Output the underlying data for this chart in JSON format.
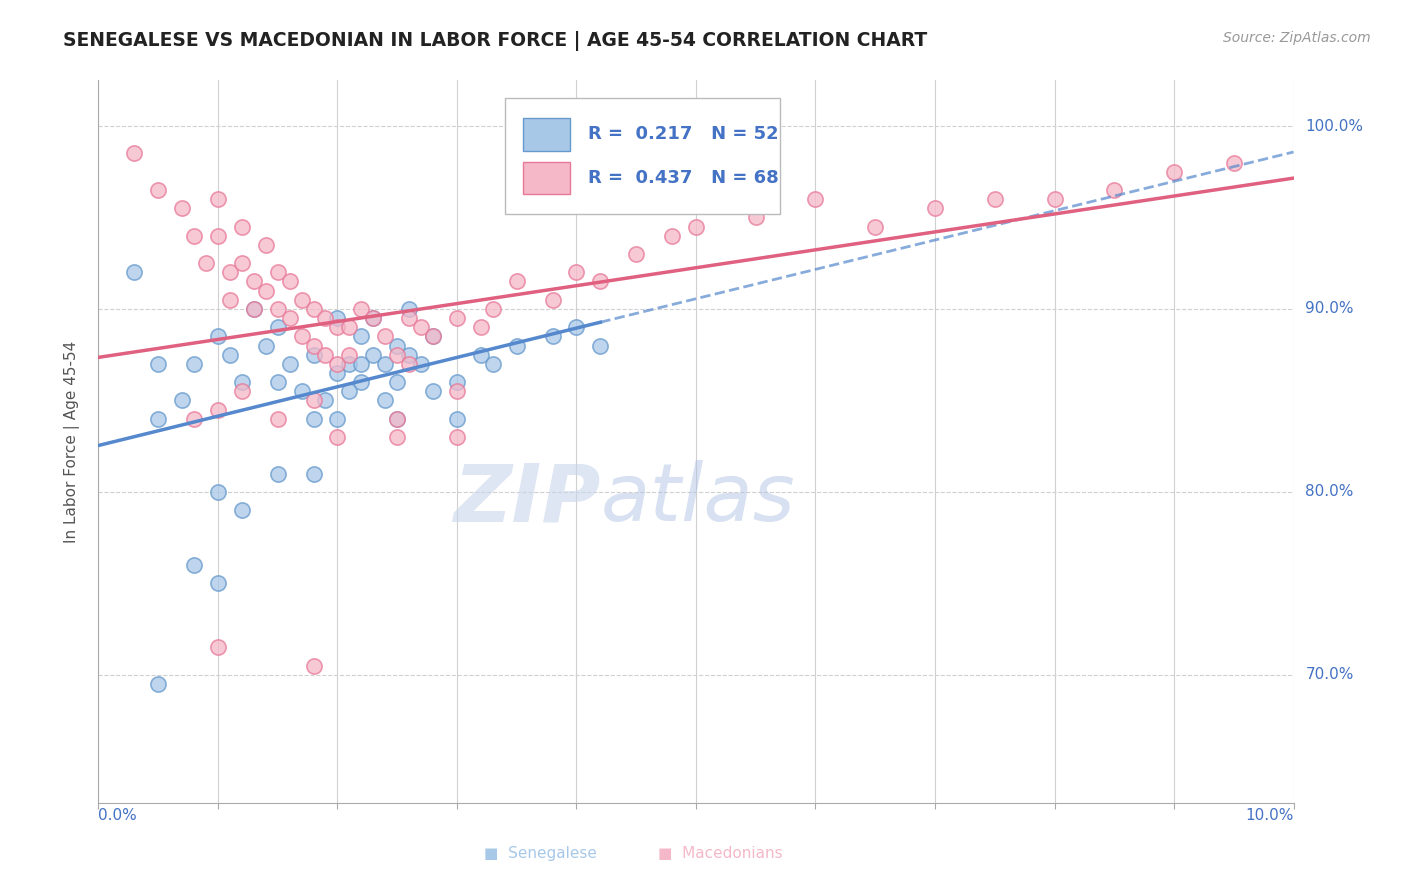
{
  "title": "SENEGALESE VS MACEDONIAN IN LABOR FORCE | AGE 45-54 CORRELATION CHART",
  "source_text": "Source: ZipAtlas.com",
  "ylabel": "In Labor Force | Age 45-54",
  "xmin": 0.0,
  "xmax": 0.1,
  "ymin": 0.63,
  "ymax": 1.025,
  "yticks": [
    0.7,
    0.8,
    0.9,
    1.0
  ],
  "ytick_labels": [
    "70.0%",
    "80.0%",
    "90.0%",
    "100.0%"
  ],
  "senegalese_color": "#a8c8e8",
  "macedonian_color": "#f4b8c8",
  "senegalese_edge": "#6699cc",
  "macedonian_edge": "#e87898",
  "trend_senegalese_color": "#5588cc",
  "trend_macedonian_color": "#e06080",
  "R_senegalese": 0.217,
  "N_senegalese": 52,
  "R_macedonian": 0.437,
  "N_macedonian": 68,
  "legend_color": "#4472c4",
  "watermark_ZIP_color": "#c8d8f0",
  "watermark_atlas_color": "#b0c4e4",
  "senegalese_points": [
    [
      0.005,
      0.87
    ],
    [
      0.005,
      0.84
    ],
    [
      0.007,
      0.85
    ],
    [
      0.008,
      0.87
    ],
    [
      0.01,
      0.885
    ],
    [
      0.011,
      0.875
    ],
    [
      0.012,
      0.86
    ],
    [
      0.013,
      0.9
    ],
    [
      0.014,
      0.88
    ],
    [
      0.015,
      0.89
    ],
    [
      0.015,
      0.86
    ],
    [
      0.016,
      0.87
    ],
    [
      0.017,
      0.855
    ],
    [
      0.018,
      0.875
    ],
    [
      0.018,
      0.84
    ],
    [
      0.019,
      0.85
    ],
    [
      0.02,
      0.895
    ],
    [
      0.02,
      0.865
    ],
    [
      0.02,
      0.84
    ],
    [
      0.021,
      0.87
    ],
    [
      0.021,
      0.855
    ],
    [
      0.022,
      0.885
    ],
    [
      0.022,
      0.86
    ],
    [
      0.023,
      0.895
    ],
    [
      0.023,
      0.875
    ],
    [
      0.024,
      0.87
    ],
    [
      0.024,
      0.85
    ],
    [
      0.025,
      0.88
    ],
    [
      0.025,
      0.86
    ],
    [
      0.026,
      0.9
    ],
    [
      0.026,
      0.875
    ],
    [
      0.027,
      0.87
    ],
    [
      0.028,
      0.885
    ],
    [
      0.028,
      0.855
    ],
    [
      0.03,
      0.86
    ],
    [
      0.03,
      0.84
    ],
    [
      0.032,
      0.875
    ],
    [
      0.033,
      0.87
    ],
    [
      0.035,
      0.88
    ],
    [
      0.038,
      0.885
    ],
    [
      0.04,
      0.89
    ],
    [
      0.042,
      0.88
    ],
    [
      0.01,
      0.8
    ],
    [
      0.012,
      0.79
    ],
    [
      0.008,
      0.76
    ],
    [
      0.01,
      0.75
    ],
    [
      0.015,
      0.81
    ],
    [
      0.005,
      0.695
    ],
    [
      0.018,
      0.81
    ],
    [
      0.003,
      0.92
    ],
    [
      0.025,
      0.84
    ],
    [
      0.022,
      0.87
    ]
  ],
  "macedonian_points": [
    [
      0.003,
      0.985
    ],
    [
      0.005,
      0.965
    ],
    [
      0.007,
      0.955
    ],
    [
      0.008,
      0.94
    ],
    [
      0.009,
      0.925
    ],
    [
      0.01,
      0.96
    ],
    [
      0.01,
      0.94
    ],
    [
      0.011,
      0.92
    ],
    [
      0.011,
      0.905
    ],
    [
      0.012,
      0.945
    ],
    [
      0.012,
      0.925
    ],
    [
      0.013,
      0.915
    ],
    [
      0.013,
      0.9
    ],
    [
      0.014,
      0.935
    ],
    [
      0.014,
      0.91
    ],
    [
      0.015,
      0.92
    ],
    [
      0.015,
      0.9
    ],
    [
      0.016,
      0.915
    ],
    [
      0.016,
      0.895
    ],
    [
      0.017,
      0.905
    ],
    [
      0.017,
      0.885
    ],
    [
      0.018,
      0.9
    ],
    [
      0.018,
      0.88
    ],
    [
      0.019,
      0.895
    ],
    [
      0.019,
      0.875
    ],
    [
      0.02,
      0.89
    ],
    [
      0.02,
      0.87
    ],
    [
      0.021,
      0.89
    ],
    [
      0.021,
      0.875
    ],
    [
      0.022,
      0.9
    ],
    [
      0.023,
      0.895
    ],
    [
      0.024,
      0.885
    ],
    [
      0.025,
      0.875
    ],
    [
      0.026,
      0.895
    ],
    [
      0.026,
      0.87
    ],
    [
      0.027,
      0.89
    ],
    [
      0.028,
      0.885
    ],
    [
      0.03,
      0.895
    ],
    [
      0.032,
      0.89
    ],
    [
      0.033,
      0.9
    ],
    [
      0.035,
      0.915
    ],
    [
      0.038,
      0.905
    ],
    [
      0.04,
      0.92
    ],
    [
      0.042,
      0.915
    ],
    [
      0.045,
      0.93
    ],
    [
      0.048,
      0.94
    ],
    [
      0.05,
      0.945
    ],
    [
      0.055,
      0.95
    ],
    [
      0.06,
      0.96
    ],
    [
      0.065,
      0.945
    ],
    [
      0.07,
      0.955
    ],
    [
      0.075,
      0.96
    ],
    [
      0.08,
      0.96
    ],
    [
      0.085,
      0.965
    ],
    [
      0.09,
      0.975
    ],
    [
      0.095,
      0.98
    ],
    [
      0.008,
      0.84
    ],
    [
      0.01,
      0.845
    ],
    [
      0.012,
      0.855
    ],
    [
      0.015,
      0.84
    ],
    [
      0.018,
      0.85
    ],
    [
      0.02,
      0.83
    ],
    [
      0.025,
      0.84
    ],
    [
      0.03,
      0.83
    ],
    [
      0.01,
      0.715
    ],
    [
      0.018,
      0.705
    ],
    [
      0.025,
      0.83
    ],
    [
      0.03,
      0.855
    ]
  ]
}
